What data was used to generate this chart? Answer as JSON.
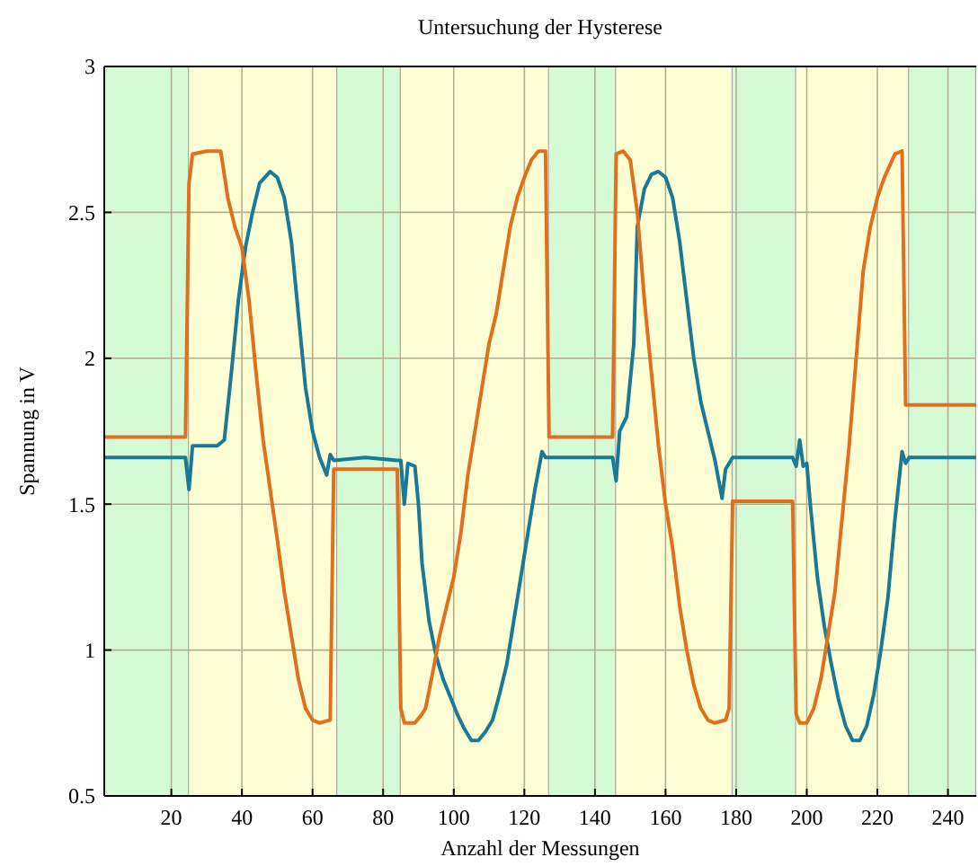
{
  "chart_data": {
    "type": "line",
    "title": "Untersuchung der Hysterese",
    "xlabel": "Anzahl der Messungen",
    "ylabel": "Spannung in V",
    "xlim": [
      1,
      248
    ],
    "ylim": [
      0.5,
      3
    ],
    "xticks": [
      20,
      40,
      60,
      80,
      100,
      120,
      140,
      160,
      180,
      200,
      220,
      240
    ],
    "yticks": [
      0.5,
      1,
      1.5,
      2,
      2.5,
      3
    ],
    "grid": true,
    "marker": "none",
    "line_style": "solid",
    "bands": [
      {
        "axis": "x",
        "from": 1,
        "to": 25,
        "color": "#d6fad6"
      },
      {
        "axis": "x",
        "from": 25,
        "to": 67,
        "color": "#ffffd6"
      },
      {
        "axis": "x",
        "from": 67,
        "to": 85,
        "color": "#d6fad6"
      },
      {
        "axis": "x",
        "from": 85,
        "to": 127,
        "color": "#ffffd6"
      },
      {
        "axis": "x",
        "from": 127,
        "to": 146,
        "color": "#d6fad6"
      },
      {
        "axis": "x",
        "from": 146,
        "to": 179,
        "color": "#ffffd6"
      },
      {
        "axis": "x",
        "from": 179,
        "to": 197,
        "color": "#d6fad6"
      },
      {
        "axis": "x",
        "from": 197,
        "to": 229,
        "color": "#ffffd6"
      },
      {
        "axis": "x",
        "from": 229,
        "to": 248,
        "color": "#d6fad6"
      }
    ],
    "series": [
      {
        "color": "#1a7a96",
        "x": [
          1,
          10,
          24,
          25,
          26,
          33,
          35,
          37,
          39,
          41,
          43,
          45,
          48,
          50,
          52,
          54,
          56,
          58,
          60,
          62,
          64,
          65,
          66,
          75,
          84,
          85,
          86,
          87,
          89,
          90,
          91,
          93,
          95,
          97,
          99,
          101,
          103,
          105,
          107,
          109,
          111,
          113,
          115,
          117,
          119,
          121,
          123,
          125,
          126,
          135,
          145,
          146,
          147,
          149,
          151,
          152,
          154,
          156,
          158,
          160,
          162,
          164,
          166,
          168,
          170,
          172,
          174,
          176,
          177,
          179,
          188,
          196,
          197,
          198,
          199,
          200,
          201,
          203,
          205,
          207,
          209,
          211,
          213,
          215,
          217,
          219,
          221,
          223,
          225,
          227,
          228,
          229,
          240,
          248
        ],
        "values": [
          1.66,
          1.66,
          1.66,
          1.55,
          1.7,
          1.7,
          1.72,
          1.95,
          2.2,
          2.38,
          2.5,
          2.6,
          2.64,
          2.62,
          2.55,
          2.4,
          2.15,
          1.9,
          1.75,
          1.66,
          1.6,
          1.67,
          1.65,
          1.66,
          1.65,
          1.65,
          1.5,
          1.64,
          1.63,
          1.5,
          1.3,
          1.1,
          0.98,
          0.9,
          0.84,
          0.78,
          0.73,
          0.69,
          0.69,
          0.72,
          0.76,
          0.85,
          0.95,
          1.1,
          1.25,
          1.4,
          1.55,
          1.68,
          1.66,
          1.66,
          1.66,
          1.58,
          1.75,
          1.8,
          2.05,
          2.45,
          2.58,
          2.63,
          2.64,
          2.62,
          2.55,
          2.4,
          2.2,
          2.0,
          1.85,
          1.75,
          1.65,
          1.52,
          1.62,
          1.66,
          1.66,
          1.66,
          1.63,
          1.72,
          1.63,
          1.64,
          1.5,
          1.25,
          1.08,
          0.95,
          0.83,
          0.74,
          0.69,
          0.69,
          0.74,
          0.85,
          1.0,
          1.18,
          1.45,
          1.68,
          1.64,
          1.66,
          1.66,
          1.66
        ]
      },
      {
        "color": "#e0701e",
        "x": [
          1,
          12,
          24,
          25,
          26,
          30,
          34,
          36,
          38,
          40,
          42,
          44,
          46,
          48,
          50,
          52,
          54,
          56,
          58,
          60,
          62,
          65,
          66,
          75,
          84,
          85,
          86,
          89,
          91,
          92,
          94,
          96,
          98,
          100,
          102,
          104,
          106,
          108,
          110,
          112,
          114,
          116,
          118,
          120,
          122,
          124,
          126,
          127,
          136,
          145,
          146,
          148,
          150,
          152,
          154,
          156,
          158,
          160,
          162,
          164,
          166,
          168,
          170,
          172,
          174,
          177,
          178,
          179,
          188,
          196,
          197,
          198,
          200,
          202,
          204,
          206,
          208,
          210,
          212,
          214,
          216,
          218,
          220,
          222,
          225,
          227,
          228,
          238,
          248
        ],
        "values": [
          1.73,
          1.73,
          1.73,
          2.6,
          2.7,
          2.71,
          2.71,
          2.55,
          2.45,
          2.38,
          2.2,
          1.95,
          1.72,
          1.55,
          1.38,
          1.2,
          1.05,
          0.9,
          0.8,
          0.76,
          0.75,
          0.76,
          1.62,
          1.62,
          1.62,
          0.8,
          0.75,
          0.75,
          0.78,
          0.8,
          0.92,
          1.05,
          1.15,
          1.25,
          1.4,
          1.6,
          1.75,
          1.9,
          2.05,
          2.15,
          2.3,
          2.45,
          2.55,
          2.62,
          2.68,
          2.71,
          2.71,
          1.73,
          1.73,
          1.73,
          2.7,
          2.71,
          2.68,
          2.5,
          2.2,
          1.95,
          1.7,
          1.5,
          1.35,
          1.15,
          1.0,
          0.88,
          0.8,
          0.76,
          0.75,
          0.76,
          0.8,
          1.51,
          1.51,
          1.51,
          0.78,
          0.75,
          0.75,
          0.8,
          0.9,
          1.05,
          1.2,
          1.45,
          1.7,
          2.0,
          2.3,
          2.45,
          2.55,
          2.62,
          2.7,
          2.71,
          1.84,
          1.84,
          1.84
        ]
      }
    ]
  }
}
